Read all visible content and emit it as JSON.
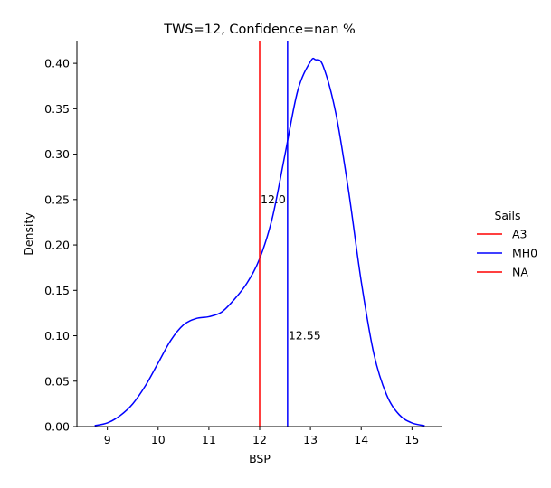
{
  "chart_data": {
    "type": "line",
    "title": "TWS=12, Confidence=nan %",
    "xlabel": "BSP",
    "ylabel": "Density",
    "xlim": [
      8.4,
      15.6
    ],
    "ylim": [
      0.0,
      0.425
    ],
    "xticks": [
      "9",
      "10",
      "11",
      "12",
      "13",
      "14",
      "15"
    ],
    "xtick_values": [
      9,
      10,
      11,
      12,
      13,
      14,
      15
    ],
    "yticks": [
      "0.00",
      "0.05",
      "0.10",
      "0.15",
      "0.20",
      "0.25",
      "0.30",
      "0.35",
      "0.40"
    ],
    "ytick_values": [
      0.0,
      0.05,
      0.1,
      0.15,
      0.2,
      0.25,
      0.3,
      0.35,
      0.4
    ],
    "grid": false,
    "legend_placement": "right",
    "legend": {
      "title": "Sails",
      "entries": [
        {
          "label": "A3",
          "color": "#ff0000"
        },
        {
          "label": "MH0",
          "color": "#0000ff"
        },
        {
          "label": "NA",
          "color": "#ff0000"
        }
      ]
    },
    "series": [
      {
        "name": "MH0",
        "color": "#0000ff",
        "x": [
          8.75,
          9.0,
          9.25,
          9.5,
          9.75,
          10.0,
          10.25,
          10.5,
          10.75,
          11.0,
          11.25,
          11.5,
          11.75,
          12.0,
          12.25,
          12.5,
          12.75,
          13.0,
          13.1,
          13.25,
          13.5,
          13.75,
          14.0,
          14.25,
          14.5,
          14.75,
          15.0,
          15.25
        ],
        "y": [
          0.001,
          0.004,
          0.012,
          0.025,
          0.045,
          0.07,
          0.095,
          0.112,
          0.119,
          0.121,
          0.126,
          0.14,
          0.158,
          0.185,
          0.23,
          0.3,
          0.37,
          0.402,
          0.404,
          0.397,
          0.345,
          0.26,
          0.16,
          0.08,
          0.035,
          0.013,
          0.004,
          0.001
        ]
      }
    ],
    "vlines": [
      {
        "x": 12.0,
        "color": "#ff0000",
        "label": "12.0",
        "label_y": 0.25
      },
      {
        "x": 12.55,
        "color": "#0000ff",
        "label": "12.55",
        "label_y": 0.1
      }
    ]
  }
}
